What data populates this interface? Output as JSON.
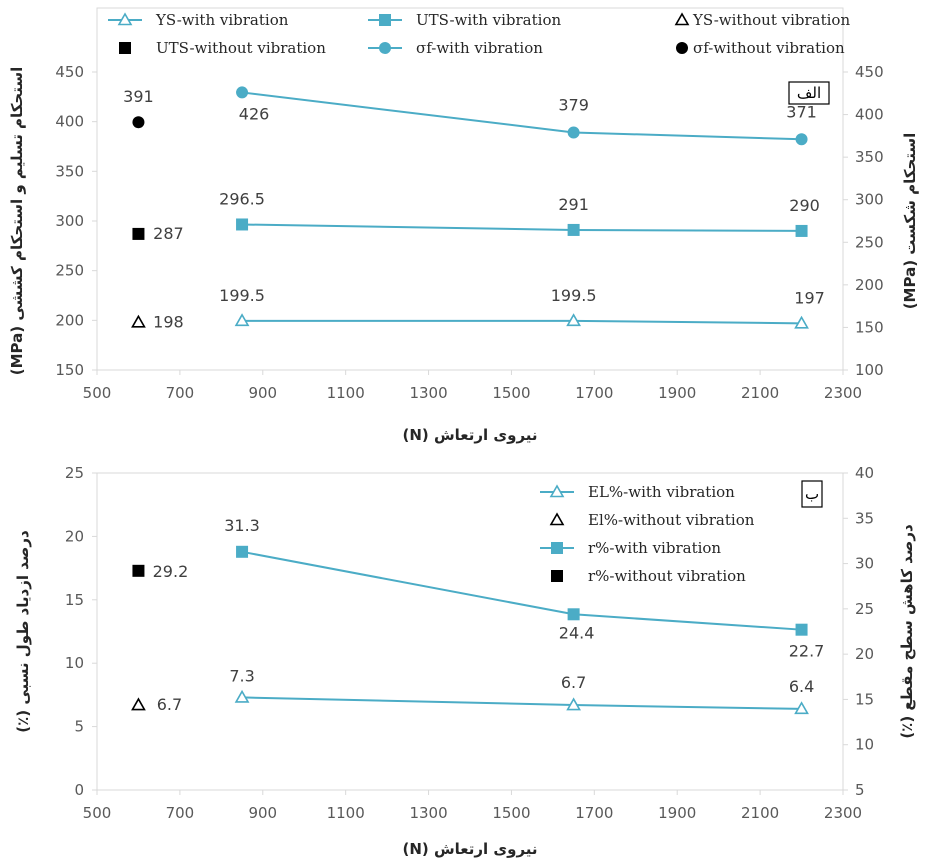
{
  "colors": {
    "with_vibration": "#4bacc6",
    "without_vibration": "#000000",
    "axis": "#d9d9d9",
    "text": "#404040"
  },
  "chart_data": [
    {
      "type": "line",
      "panel_label": "الف",
      "xlabel": "نیروی ارتعاش (N)",
      "ylabel_left": "استحکام تسلیم و استحکام کششی (MPa)",
      "ylabel_right": "استحکام شکست (MPa)",
      "xlim": [
        500,
        2300
      ],
      "xticks": [
        500,
        700,
        900,
        1100,
        1300,
        1500,
        1700,
        1900,
        2100,
        2300
      ],
      "ylim_left": [
        150,
        450
      ],
      "yticks_left": [
        150,
        200,
        250,
        300,
        350,
        400,
        450
      ],
      "ylim_right": [
        100,
        450
      ],
      "yticks_right": [
        100,
        150,
        200,
        250,
        300,
        350,
        400,
        450
      ],
      "legend": [
        "YS-with vibration",
        "UTS-with vibration",
        "YS-without vibration",
        "UTS-without vibration",
        "σf-with vibration",
        "σf-without vibration"
      ],
      "series": [
        {
          "name": "YS-with vibration",
          "axis": "left",
          "marker": "triangle-open",
          "line": true,
          "x": [
            850,
            1650,
            2200
          ],
          "y": [
            199.5,
            199.5,
            197
          ],
          "labels": [
            "199.5",
            "199.5",
            "197"
          ]
        },
        {
          "name": "UTS-with vibration",
          "axis": "left",
          "marker": "square",
          "line": true,
          "x": [
            850,
            1650,
            2200
          ],
          "y": [
            296.5,
            291,
            290
          ],
          "labels": [
            "296.5",
            "291",
            "290"
          ]
        },
        {
          "name": "YS-without vibration",
          "axis": "left",
          "marker": "triangle-open-black",
          "line": false,
          "x": [
            600
          ],
          "y": [
            198
          ],
          "labels": [
            "198"
          ]
        },
        {
          "name": "UTS-without vibration",
          "axis": "left",
          "marker": "square-black",
          "line": false,
          "x": [
            600
          ],
          "y": [
            287
          ],
          "labels": [
            "287"
          ]
        },
        {
          "name": "σf-with vibration",
          "axis": "right",
          "marker": "circle",
          "line": true,
          "x": [
            850,
            1650,
            2200
          ],
          "y": [
            426,
            379,
            371
          ],
          "labels": [
            "426",
            "379",
            "371"
          ]
        },
        {
          "name": "σf-without vibration",
          "axis": "right",
          "marker": "circle-black",
          "line": false,
          "x": [
            600
          ],
          "y": [
            391
          ],
          "labels": [
            "391"
          ]
        }
      ]
    },
    {
      "type": "line",
      "panel_label": "ب",
      "xlabel": "نیروی ارتعاش (N)",
      "ylabel_left": "درصد ازدیاد طول نسبی (٪)",
      "ylabel_right": "درصد کاهش سطح مقطع (٪)",
      "xlim": [
        500,
        2300
      ],
      "xticks": [
        500,
        700,
        900,
        1100,
        1300,
        1500,
        1700,
        1900,
        2100,
        2300
      ],
      "ylim_left": [
        0,
        25
      ],
      "yticks_left": [
        0,
        5,
        10,
        15,
        20,
        25
      ],
      "ylim_right": [
        5,
        40
      ],
      "yticks_right": [
        5,
        10,
        15,
        20,
        25,
        30,
        35,
        40
      ],
      "legend": [
        "EL%-with vibration",
        "El%-without vibration",
        "r%-with vibration",
        "r%-without vibration"
      ],
      "series": [
        {
          "name": "EL%-with vibration",
          "axis": "left",
          "marker": "triangle-open",
          "line": true,
          "x": [
            850,
            1650,
            2200
          ],
          "y": [
            7.3,
            6.7,
            6.4
          ],
          "labels": [
            "7.3",
            "6.7",
            "6.4"
          ]
        },
        {
          "name": "El%-without vibration",
          "axis": "left",
          "marker": "triangle-open-black",
          "line": false,
          "x": [
            600
          ],
          "y": [
            6.7
          ],
          "labels": [
            "6.7"
          ]
        },
        {
          "name": "r%-with vibration",
          "axis": "right",
          "marker": "square",
          "line": true,
          "x": [
            850,
            1650,
            2200
          ],
          "y": [
            31.3,
            24.4,
            22.7
          ],
          "labels": [
            "31.3",
            "24.4",
            "22.7"
          ]
        },
        {
          "name": "r%-without vibration",
          "axis": "right",
          "marker": "square-black",
          "line": false,
          "x": [
            600
          ],
          "y": [
            29.2
          ],
          "labels": [
            "29.2"
          ]
        }
      ]
    }
  ]
}
